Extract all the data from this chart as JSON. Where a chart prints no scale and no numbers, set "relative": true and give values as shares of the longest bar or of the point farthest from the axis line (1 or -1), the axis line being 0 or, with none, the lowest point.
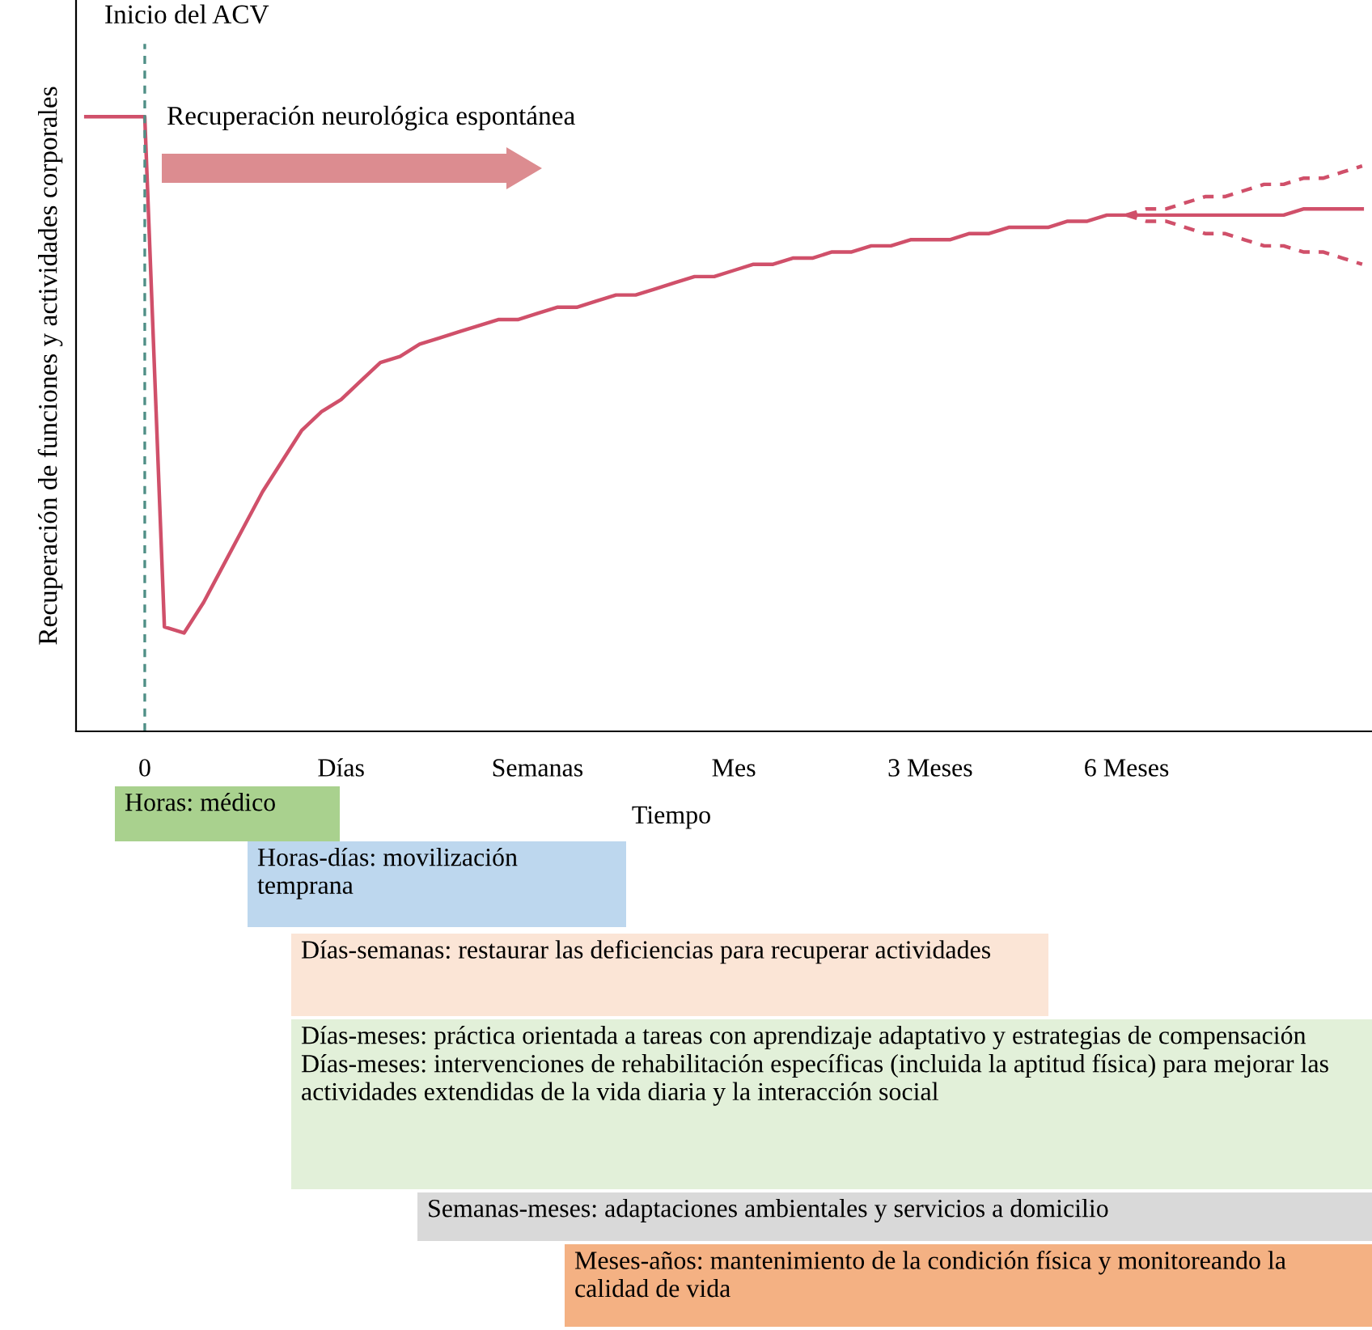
{
  "chart_data": {
    "type": "line",
    "relative": true,
    "ylabel": "Recuperación de funciones y actividades corporales",
    "xlabel": "Tiempo",
    "categories": [
      null,
      null,
      null,
      "0",
      null,
      null,
      null,
      null,
      null,
      null,
      null,
      null,
      null,
      "Días",
      null,
      null,
      null,
      null,
      null,
      null,
      null,
      null,
      null,
      "Semanas",
      null,
      null,
      null,
      null,
      null,
      null,
      null,
      null,
      null,
      "Mes",
      null,
      null,
      null,
      null,
      null,
      null,
      null,
      null,
      null,
      "3 Meses",
      null,
      null,
      null,
      null,
      null,
      null,
      null,
      null,
      null,
      "6 Meses",
      null,
      null,
      null,
      null,
      null,
      null,
      null,
      null,
      null,
      null,
      null,
      null
    ],
    "tick_labels": "x",
    "grid": false,
    "legend": false,
    "marker": "none",
    "series": [
      {
        "color": "#d0506a",
        "line_style": "solid",
        "values": [
          1.0,
          1.0,
          1.0,
          1.0,
          0.17,
          0.16,
          0.21,
          0.27,
          0.33,
          0.39,
          0.44,
          0.49,
          0.52,
          0.54,
          0.57,
          0.6,
          0.61,
          0.63,
          0.64,
          0.65,
          0.66,
          0.67,
          0.67,
          0.68,
          0.69,
          0.69,
          0.7,
          0.71,
          0.71,
          0.72,
          0.73,
          0.74,
          0.74,
          0.75,
          0.76,
          0.76,
          0.77,
          0.77,
          0.78,
          0.78,
          0.79,
          0.79,
          0.8,
          0.8,
          0.8,
          0.81,
          0.81,
          0.82,
          0.82,
          0.82,
          0.83,
          0.83,
          0.84,
          0.84,
          0.84,
          0.84,
          0.84,
          0.84,
          0.84,
          0.84,
          0.84,
          0.84,
          0.85,
          0.85,
          0.85,
          0.85
        ]
      },
      {
        "color": "#d0506a",
        "line_style": "dashed",
        "values": [
          null,
          null,
          null,
          null,
          null,
          null,
          null,
          null,
          null,
          null,
          null,
          null,
          null,
          null,
          null,
          null,
          null,
          null,
          null,
          null,
          null,
          null,
          null,
          null,
          null,
          null,
          null,
          null,
          null,
          null,
          null,
          null,
          null,
          null,
          null,
          null,
          null,
          null,
          null,
          null,
          null,
          null,
          null,
          null,
          null,
          null,
          null,
          null,
          null,
          null,
          null,
          null,
          null,
          0.84,
          0.85,
          0.85,
          0.86,
          0.87,
          0.87,
          0.88,
          0.89,
          0.89,
          0.9,
          0.9,
          0.91,
          0.92
        ]
      },
      {
        "color": "#d0506a",
        "line_style": "dashed",
        "values": [
          null,
          null,
          null,
          null,
          null,
          null,
          null,
          null,
          null,
          null,
          null,
          null,
          null,
          null,
          null,
          null,
          null,
          null,
          null,
          null,
          null,
          null,
          null,
          null,
          null,
          null,
          null,
          null,
          null,
          null,
          null,
          null,
          null,
          null,
          null,
          null,
          null,
          null,
          null,
          null,
          null,
          null,
          null,
          null,
          null,
          null,
          null,
          null,
          null,
          null,
          null,
          null,
          null,
          0.84,
          0.83,
          0.83,
          0.82,
          0.81,
          0.81,
          0.8,
          0.79,
          0.79,
          0.78,
          0.78,
          0.77,
          0.76
        ]
      }
    ],
    "ref_lines": [
      {
        "axis": "x",
        "value": "0",
        "label": "Inicio del ACV",
        "color": "#4f8f86",
        "line_style": "dashed"
      }
    ],
    "annotations": [
      "Recuperación neurológica espontánea",
      "Horas: médico",
      "Horas-días: movilización temprana",
      "Días-semanas: restaurar las deficiencias para recuperar actividades",
      "Días-meses: práctica orientada a tareas con aprendizaje adaptativo y estrategias de compensación Días-meses: intervenciones de rehabilitación específicas (incluida la aptitud física) para mejorar las actividades extendidas de la vida diaria y la interacción social",
      "Semanas-meses: adaptaciones ambientales y servicios a domicilio",
      "Meses-años: mantenimiento de la condición física y monitoreando la calidad de vida"
    ]
  }
}
